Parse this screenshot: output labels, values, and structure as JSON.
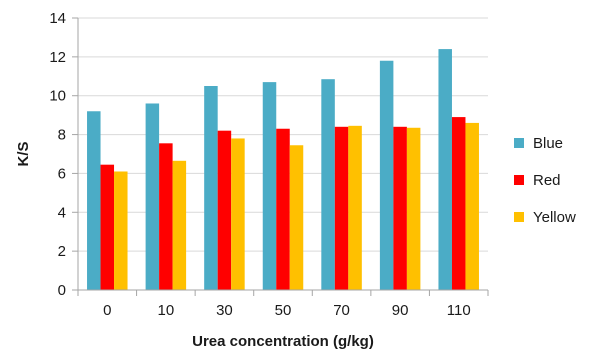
{
  "chart_data": {
    "type": "bar",
    "categories": [
      "0",
      "10",
      "30",
      "50",
      "70",
      "90",
      "110"
    ],
    "series": [
      {
        "name": "Blue",
        "color": "#4BACC6",
        "values": [
          9.2,
          9.6,
          10.5,
          10.7,
          10.85,
          11.8,
          12.4
        ]
      },
      {
        "name": "Red",
        "color": "#FF0000",
        "values": [
          6.45,
          7.55,
          8.2,
          8.3,
          8.4,
          8.4,
          8.9
        ]
      },
      {
        "name": "Yellow",
        "color": "#FFC000",
        "values": [
          6.1,
          6.65,
          7.8,
          7.45,
          8.45,
          8.35,
          8.6
        ]
      }
    ],
    "title": "",
    "xlabel": "Urea concentration (g/kg)",
    "ylabel": "K/S",
    "ylim": [
      0,
      14
    ],
    "yticks": [
      0,
      2,
      4,
      6,
      8,
      10,
      12,
      14
    ],
    "grid": "horizontal",
    "legend": "right"
  }
}
